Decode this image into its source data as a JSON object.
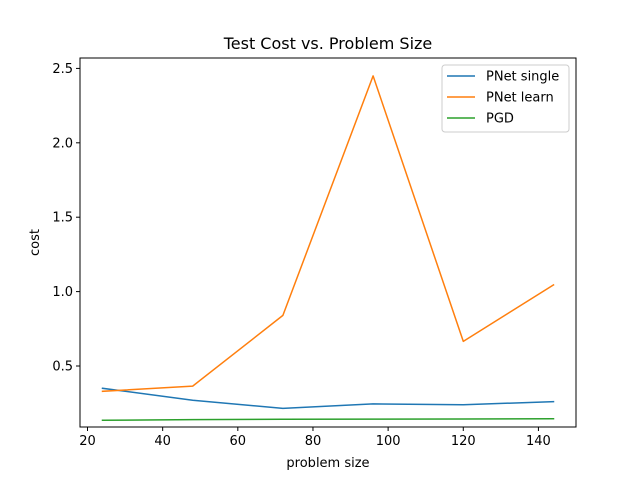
{
  "chart_data": {
    "type": "line",
    "title": "Test Cost vs. Problem Size",
    "xlabel": "problem size",
    "ylabel": "cost",
    "x": [
      24,
      48,
      72,
      96,
      120,
      144
    ],
    "xlim": [
      18,
      150
    ],
    "ylim": [
      0.09,
      2.57
    ],
    "xticks": [
      20,
      40,
      60,
      80,
      100,
      120,
      140
    ],
    "yticks": [
      0.5,
      1.0,
      1.5,
      2.0,
      2.5
    ],
    "xtick_labels": [
      "20",
      "40",
      "60",
      "80",
      "100",
      "120",
      "140"
    ],
    "ytick_labels": [
      "0.5",
      "1.0",
      "1.5",
      "2.0",
      "2.5"
    ],
    "grid": false,
    "legend_position": "top-right",
    "series": [
      {
        "name": "PNet single",
        "color": "#1f77b4",
        "values": [
          0.35,
          0.27,
          0.215,
          0.245,
          0.24,
          0.26
        ]
      },
      {
        "name": "PNet learn",
        "color": "#ff7f0e",
        "values": [
          0.33,
          0.365,
          0.84,
          2.45,
          0.665,
          1.045
        ]
      },
      {
        "name": "PGD",
        "color": "#2ca02c",
        "values": [
          0.135,
          0.14,
          0.142,
          0.143,
          0.144,
          0.145
        ]
      }
    ]
  }
}
